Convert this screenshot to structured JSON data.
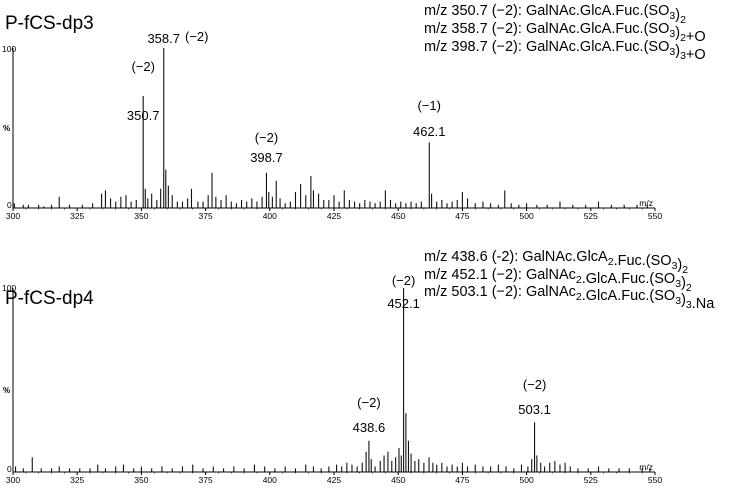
{
  "chart_data": [
    {
      "type": "bar",
      "title": "P-fCS-dp3",
      "xlabel": "m/z",
      "ylabel": "%",
      "xlim": [
        300,
        550
      ],
      "ylim": [
        0,
        100
      ],
      "x_ticks": [
        "300",
        "325",
        "350",
        "375",
        "400",
        "425",
        "450",
        "475",
        "500",
        "525",
        "550"
      ],
      "y_ticks": [
        "0",
        "100"
      ],
      "legend": [
        {
          "text": "m/z 350.7 (−2): GalNAc.GlcA.Fuc.(SO",
          "sub": "3",
          "after": ")",
          "sub2": "2",
          "tail": ""
        },
        {
          "text": "m/z 358.7 (−2): GalNAc.GlcA.Fuc.(SO",
          "sub": "3",
          "after": ")",
          "sub2": "2",
          "tail": "+O"
        },
        {
          "text": "m/z 398.7 (−2): GalNAc.GlcA.Fuc.(SO",
          "sub": "3",
          "after": ")",
          "sub2": "3",
          "tail": "+O"
        }
      ],
      "peak_labels": [
        {
          "mz": "350.7",
          "charge": "(−2)"
        },
        {
          "mz": "358.7",
          "charge": "(−2)"
        },
        {
          "mz": "398.7",
          "charge": "(−2)"
        },
        {
          "mz": "462.1",
          "charge": "(−1)"
        }
      ],
      "peaks": [
        [
          300.5,
          3
        ],
        [
          304,
          2
        ],
        [
          306,
          2
        ],
        [
          310,
          2
        ],
        [
          312,
          1
        ],
        [
          315,
          2
        ],
        [
          318,
          7
        ],
        [
          322,
          2
        ],
        [
          327,
          2
        ],
        [
          331,
          3
        ],
        [
          334.5,
          9
        ],
        [
          336,
          11
        ],
        [
          338,
          6
        ],
        [
          340,
          4
        ],
        [
          342,
          7
        ],
        [
          344,
          8
        ],
        [
          346,
          4
        ],
        [
          348,
          5
        ],
        [
          350.7,
          70
        ],
        [
          351.5,
          12
        ],
        [
          352.5,
          6
        ],
        [
          354,
          9
        ],
        [
          356,
          5
        ],
        [
          357.5,
          12
        ],
        [
          358.7,
          100
        ],
        [
          359.5,
          24
        ],
        [
          360.5,
          14
        ],
        [
          362,
          8
        ],
        [
          364,
          4
        ],
        [
          366,
          4
        ],
        [
          368,
          6
        ],
        [
          369.5,
          12
        ],
        [
          372,
          4
        ],
        [
          374,
          4
        ],
        [
          376,
          8
        ],
        [
          377.5,
          22
        ],
        [
          379,
          7
        ],
        [
          381,
          5
        ],
        [
          383,
          8
        ],
        [
          385,
          4
        ],
        [
          387,
          3
        ],
        [
          389,
          5
        ],
        [
          391,
          4
        ],
        [
          393,
          6
        ],
        [
          395,
          4
        ],
        [
          397,
          7
        ],
        [
          398.7,
          22
        ],
        [
          399.6,
          10
        ],
        [
          401,
          7
        ],
        [
          402.5,
          17
        ],
        [
          404,
          6
        ],
        [
          406,
          3
        ],
        [
          408,
          4
        ],
        [
          410,
          10
        ],
        [
          412,
          15
        ],
        [
          414,
          8
        ],
        [
          416,
          20
        ],
        [
          417,
          11
        ],
        [
          419,
          9
        ],
        [
          421,
          5
        ],
        [
          423,
          5
        ],
        [
          425,
          8
        ],
        [
          427,
          4
        ],
        [
          429,
          11
        ],
        [
          431,
          5
        ],
        [
          433,
          4
        ],
        [
          435,
          3
        ],
        [
          437,
          5
        ],
        [
          439,
          4
        ],
        [
          441,
          3
        ],
        [
          443,
          4
        ],
        [
          445,
          11
        ],
        [
          447,
          5
        ],
        [
          449,
          3
        ],
        [
          451,
          4
        ],
        [
          453,
          3
        ],
        [
          455,
          4
        ],
        [
          457,
          3
        ],
        [
          459,
          4
        ],
        [
          462.1,
          41
        ],
        [
          463,
          9
        ],
        [
          465,
          4
        ],
        [
          467,
          5
        ],
        [
          469,
          3
        ],
        [
          471,
          4
        ],
        [
          473,
          5
        ],
        [
          475,
          10
        ],
        [
          477,
          6
        ],
        [
          480,
          3
        ],
        [
          483,
          4
        ],
        [
          486,
          3
        ],
        [
          489,
          2
        ],
        [
          491.5,
          11
        ],
        [
          494,
          3
        ],
        [
          497,
          2
        ],
        [
          500,
          3
        ],
        [
          504,
          2
        ],
        [
          508,
          2
        ],
        [
          513,
          4
        ],
        [
          518,
          2
        ],
        [
          523,
          2
        ],
        [
          528,
          4
        ],
        [
          533,
          2
        ],
        [
          538,
          2
        ],
        [
          543,
          2
        ],
        [
          547,
          2
        ]
      ]
    },
    {
      "type": "bar",
      "title": "P-fCS-dp4",
      "xlabel": "m/z",
      "ylabel": "%",
      "xlim": [
        300,
        550
      ],
      "ylim": [
        0,
        100
      ],
      "x_ticks": [
        "300",
        "325",
        "350",
        "375",
        "400",
        "425",
        "450",
        "475",
        "500",
        "525",
        "550"
      ],
      "y_ticks": [
        "0",
        "100"
      ],
      "legend": [
        {
          "text": "m/z 438.6 (-2): GalNAc.GlcA",
          "sub": "2",
          "after": ".Fuc.(SO",
          "sub2": "3",
          "tail": ")",
          "sub3": "2",
          "tail2": ""
        },
        {
          "text": "m/z 452.1 (−2): GalNAc",
          "sub": "2",
          "after": ".GlcA.Fuc.(SO",
          "sub2": "3",
          "tail": ")",
          "sub3": "2",
          "tail2": ""
        },
        {
          "text": "m/z 503.1 (−2): GalNAc",
          "sub": "2",
          "after": ".GlcA.Fuc.(SO",
          "sub2": "3",
          "tail": ")",
          "sub3": "3",
          "tail2": ".Na"
        }
      ],
      "peak_labels": [
        {
          "mz": "438.6",
          "charge": "(−2)"
        },
        {
          "mz": "452.1",
          "charge": "(−2)"
        },
        {
          "mz": "503.1",
          "charge": "(−2)"
        }
      ],
      "peaks": [
        [
          301,
          3
        ],
        [
          304,
          2
        ],
        [
          307.5,
          8
        ],
        [
          311,
          2
        ],
        [
          315,
          2
        ],
        [
          318,
          3
        ],
        [
          322,
          2
        ],
        [
          326,
          2
        ],
        [
          330,
          2
        ],
        [
          333,
          4
        ],
        [
          336,
          2
        ],
        [
          340,
          3
        ],
        [
          343,
          4
        ],
        [
          347,
          2
        ],
        [
          350,
          3
        ],
        [
          354,
          2
        ],
        [
          358,
          3
        ],
        [
          362,
          2
        ],
        [
          366,
          3
        ],
        [
          370,
          4
        ],
        [
          374,
          2
        ],
        [
          378,
          3
        ],
        [
          382,
          2
        ],
        [
          386,
          3
        ],
        [
          390,
          2
        ],
        [
          394,
          4
        ],
        [
          398,
          3
        ],
        [
          402,
          2
        ],
        [
          406,
          3
        ],
        [
          410,
          2
        ],
        [
          414,
          4
        ],
        [
          417,
          3
        ],
        [
          420,
          2
        ],
        [
          423,
          3
        ],
        [
          426,
          4
        ],
        [
          428,
          3
        ],
        [
          430,
          5
        ],
        [
          432,
          4
        ],
        [
          434,
          3
        ],
        [
          436,
          5
        ],
        [
          437.5,
          11
        ],
        [
          438.6,
          17
        ],
        [
          439.5,
          7
        ],
        [
          441,
          3
        ],
        [
          443,
          6
        ],
        [
          444.5,
          9
        ],
        [
          446,
          11
        ],
        [
          447.5,
          6
        ],
        [
          449,
          8
        ],
        [
          450.3,
          13
        ],
        [
          451.2,
          9
        ],
        [
          452.1,
          100
        ],
        [
          453,
          32
        ],
        [
          454,
          17
        ],
        [
          455,
          10
        ],
        [
          456.5,
          6
        ],
        [
          458,
          7
        ],
        [
          460,
          5
        ],
        [
          462,
          8
        ],
        [
          463.5,
          5
        ],
        [
          465,
          4
        ],
        [
          467,
          5
        ],
        [
          469,
          3
        ],
        [
          471,
          4
        ],
        [
          473,
          3
        ],
        [
          475,
          5
        ],
        [
          477,
          3
        ],
        [
          480,
          4
        ],
        [
          483,
          3
        ],
        [
          486,
          3
        ],
        [
          489,
          4
        ],
        [
          492,
          3
        ],
        [
          495,
          2
        ],
        [
          498,
          4
        ],
        [
          500.5,
          3
        ],
        [
          502,
          7
        ],
        [
          503.1,
          27
        ],
        [
          504,
          9
        ],
        [
          505.5,
          5
        ],
        [
          507,
          3
        ],
        [
          509,
          5
        ],
        [
          511,
          6
        ],
        [
          513,
          4
        ],
        [
          515,
          5
        ],
        [
          517,
          3
        ],
        [
          520,
          2
        ],
        [
          524,
          2
        ],
        [
          528,
          3
        ],
        [
          532,
          2
        ],
        [
          536,
          2
        ],
        [
          540,
          2
        ],
        [
          545,
          2
        ],
        [
          548,
          2
        ]
      ]
    }
  ]
}
